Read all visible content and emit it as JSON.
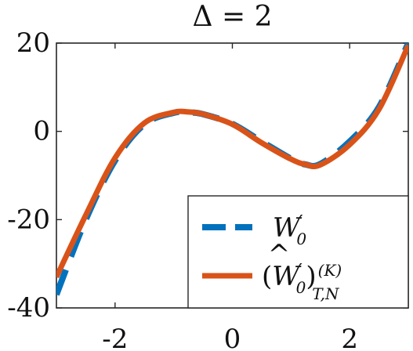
{
  "chart_data": {
    "type": "line",
    "title": "Δ = 2",
    "xlabel": "",
    "ylabel": "",
    "xlim": [
      -3,
      3
    ],
    "ylim": [
      -40,
      20
    ],
    "xticks": [
      -2,
      0,
      2
    ],
    "xtick_labels": [
      "-2",
      "0",
      "2"
    ],
    "yticks": [
      20,
      0,
      -20,
      -40
    ],
    "ytick_labels": [
      "20",
      "0",
      "-20",
      "-40"
    ],
    "grid": false,
    "legend_position": "bottom-right",
    "series": [
      {
        "name": "W0'",
        "style": "dashed",
        "color": "#0072BD",
        "x": [
          -3,
          -2.5,
          -2,
          -1.5,
          -1,
          -0.75,
          -0.5,
          0,
          0.5,
          1,
          1.25,
          1.5,
          2,
          2.5,
          3
        ],
        "y": [
          -37,
          -20,
          -6.6,
          1.6,
          4.2,
          4.3,
          3.9,
          1.7,
          -2.3,
          -6.2,
          -7.5,
          -7.4,
          -2.3,
          5.5,
          20
        ]
      },
      {
        "name": "(Ŵ0')(K) T,N",
        "style": "solid",
        "color": "#D95319",
        "x": [
          -3,
          -2.5,
          -2,
          -1.5,
          -1,
          -0.75,
          -0.5,
          0,
          0.5,
          1,
          1.25,
          1.5,
          2,
          2.5,
          3
        ],
        "y": [
          -33,
          -19,
          -6.0,
          1.9,
          4.3,
          4.4,
          3.9,
          1.6,
          -2.6,
          -6.3,
          -7.5,
          -7.6,
          -3.0,
          5.0,
          19.5
        ]
      }
    ],
    "legend": {
      "entries": [
        {
          "main": "W",
          "prime": "′",
          "sub": "0"
        },
        {
          "prefix": "(",
          "main": "W",
          "hat": "^",
          "prime": "′",
          "sub": "0",
          "suffix": ")",
          "sup": "(K)",
          "sub2": "T,N"
        }
      ]
    }
  }
}
